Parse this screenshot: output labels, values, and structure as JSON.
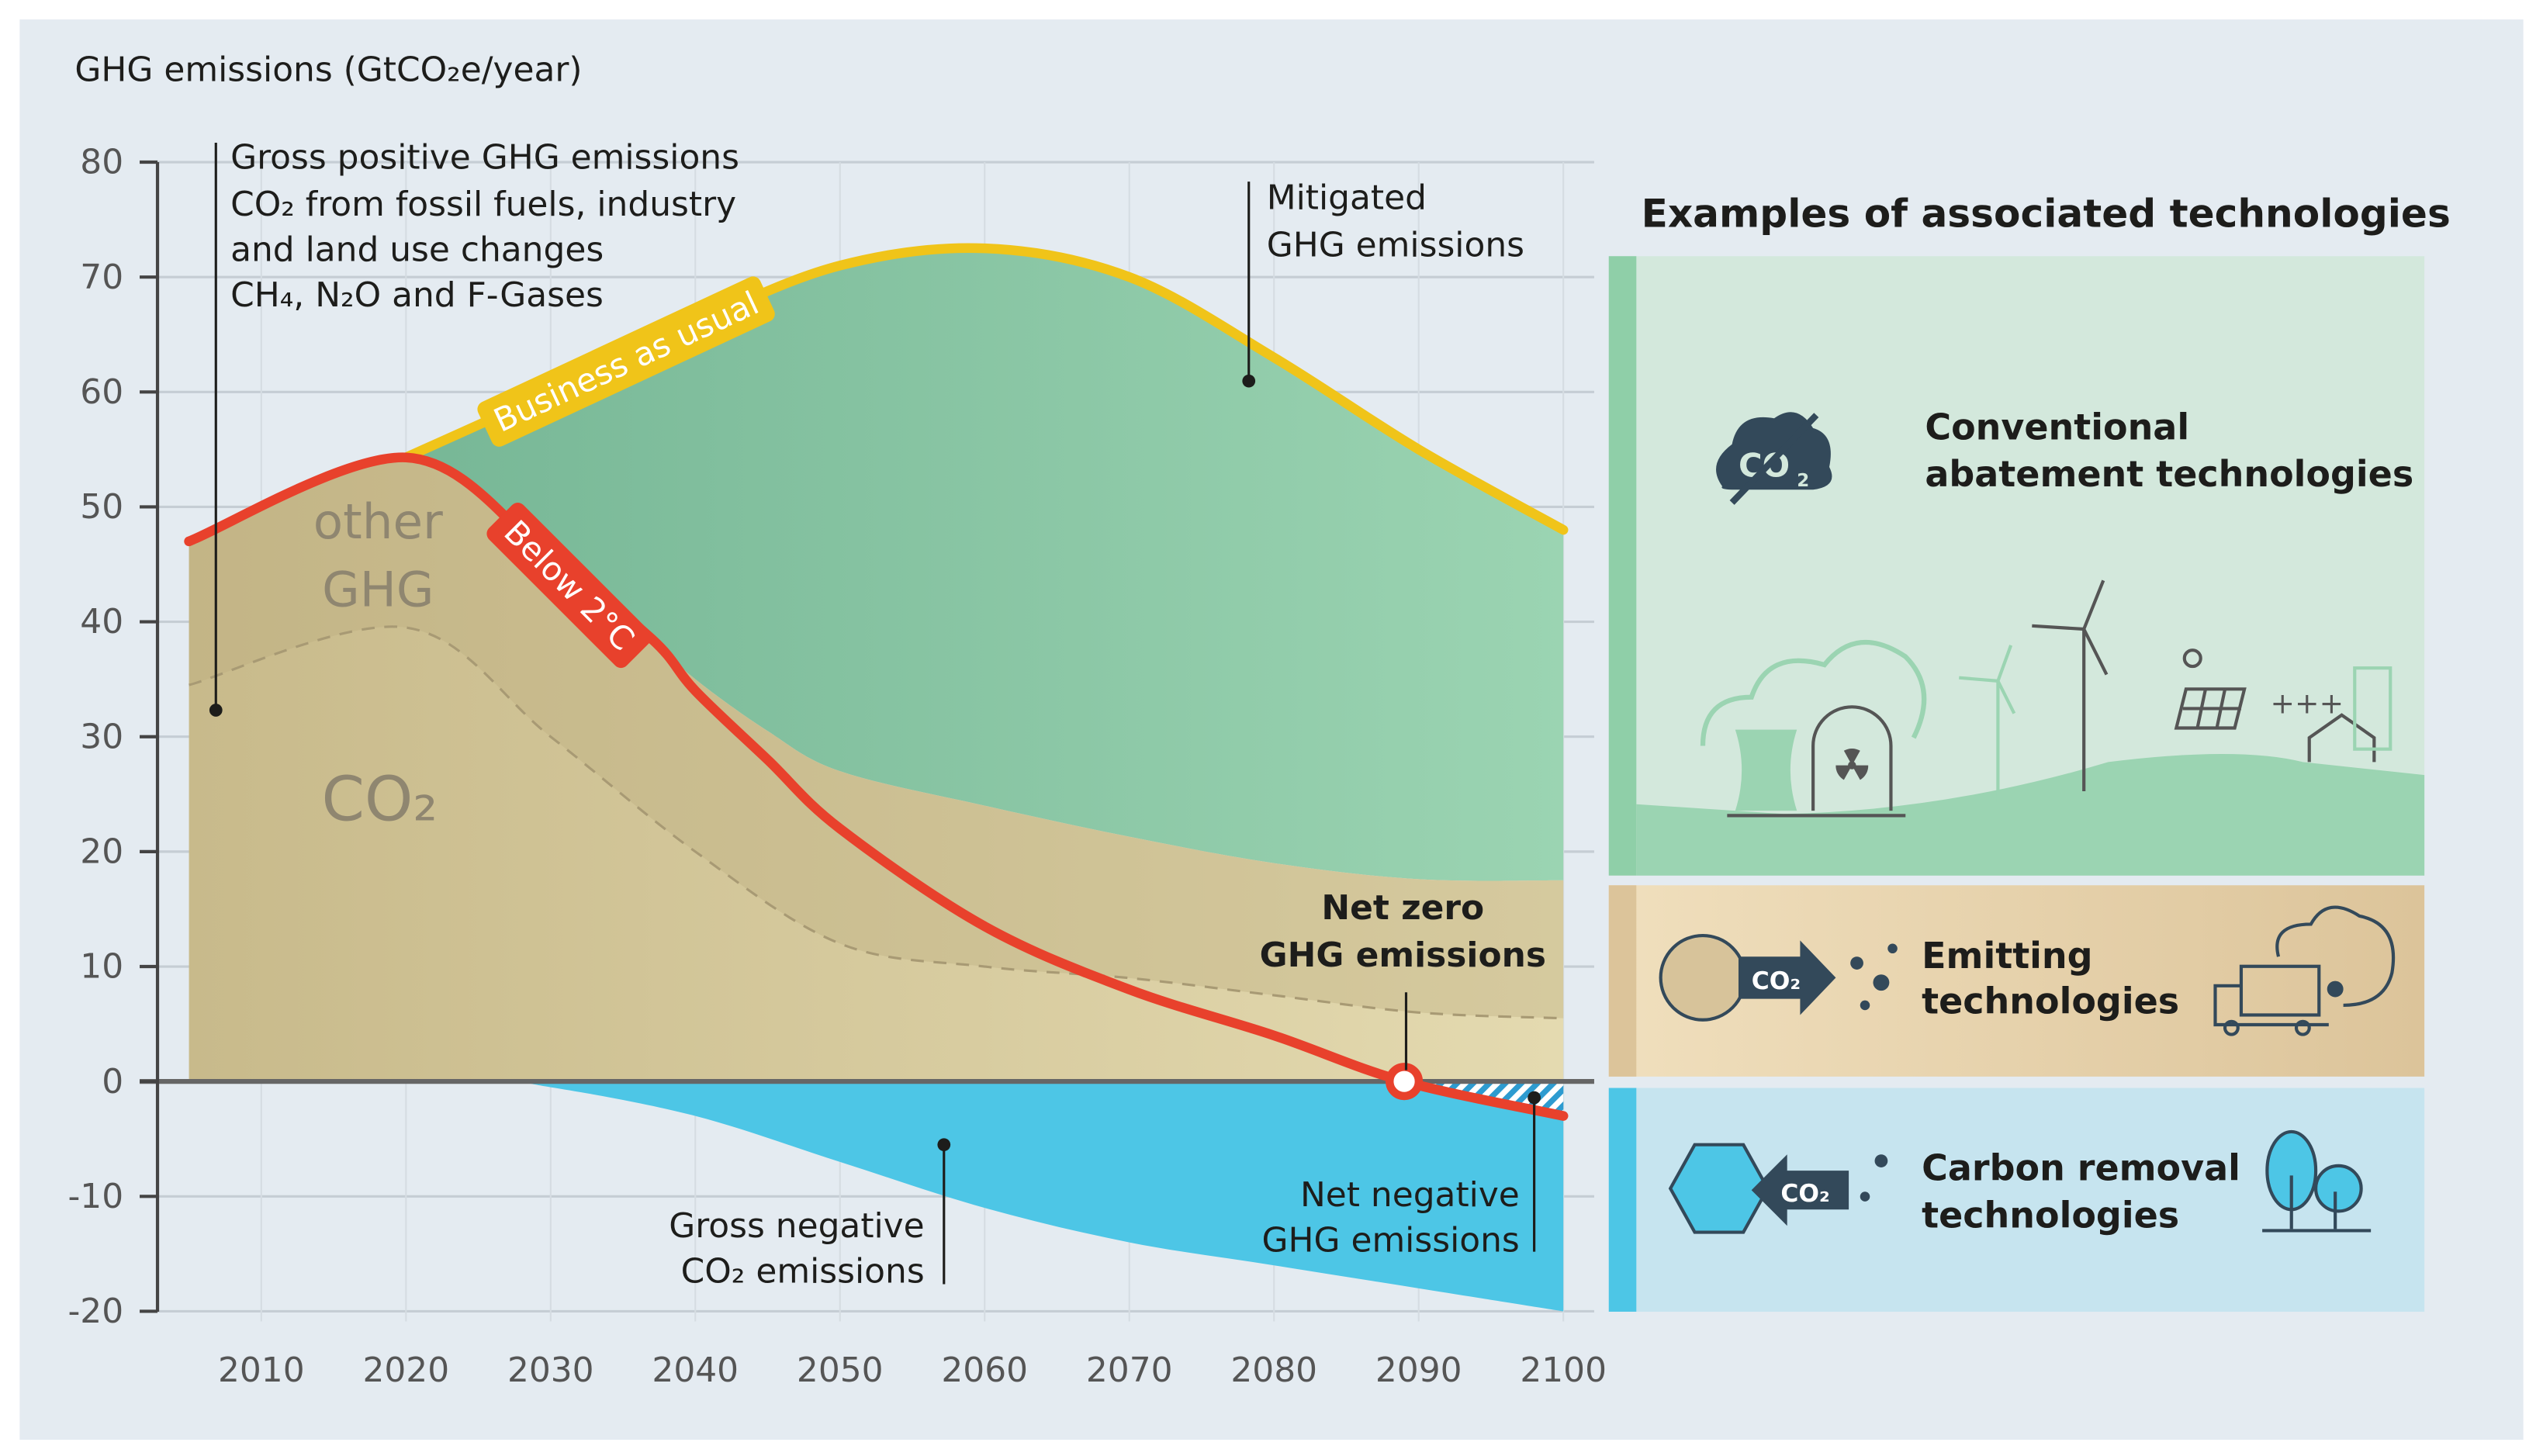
{
  "chart_data": {
    "type": "area",
    "ylabel": "GHG emissions (GtCO₂e/year)",
    "ylim": [
      -20,
      80
    ],
    "xlim": [
      2005,
      2100
    ],
    "yticks": [
      "80",
      "70",
      "60",
      "50",
      "40",
      "30",
      "20",
      "10",
      "0",
      "-10",
      "-20"
    ],
    "xticks": [
      "2010",
      "2020",
      "2030",
      "2040",
      "2050",
      "2060",
      "2070",
      "2080",
      "2090",
      "2100"
    ],
    "grid": true,
    "series": [
      {
        "name": "Business as usual",
        "color": "#f0c419",
        "x": [
          2005,
          2020,
          2030,
          2040,
          2050,
          2060,
          2070,
          2080,
          2090,
          2100
        ],
        "values": [
          47,
          54.3,
          60,
          66,
          71,
          72.5,
          70,
          63,
          55,
          48
        ]
      },
      {
        "name": "Below 2°C",
        "color": "#e8412c",
        "x": [
          2005,
          2020,
          2030,
          2037,
          2040,
          2045,
          2050,
          2060,
          2070,
          2080,
          2089,
          2100
        ],
        "values": [
          47,
          54.3,
          45.5,
          38.5,
          34,
          28,
          22,
          13.5,
          8,
          4,
          0,
          -3
        ]
      },
      {
        "name": "Gross positive GHG emissions",
        "x": [
          2005,
          2020,
          2030,
          2037,
          2040,
          2045,
          2050,
          2060,
          2070,
          2080,
          2090,
          2100
        ],
        "values": [
          47,
          54.3,
          45.5,
          38.5,
          35,
          30.5,
          27,
          24,
          21.3,
          19,
          17.6,
          17.5
        ]
      },
      {
        "name": "CO₂",
        "x": [
          2005,
          2020,
          2030,
          2040,
          2050,
          2060,
          2070,
          2080,
          2090,
          2100
        ],
        "values": [
          34.5,
          39.5,
          30,
          20,
          12,
          10,
          9,
          7.5,
          6,
          5.5
        ]
      },
      {
        "name": "Gross negative CO₂ emissions",
        "x": [
          2005,
          2025,
          2030,
          2040,
          2050,
          2060,
          2070,
          2080,
          2090,
          2100
        ],
        "values": [
          0,
          0,
          -0.5,
          -3,
          -7,
          -11,
          -14,
          -16,
          -18,
          -20
        ]
      }
    ],
    "colors": {
      "mitigated": "#8fcfa8",
      "gross_positive": "#d3c596",
      "other_ghg": "#c4b688",
      "negative": "#4dc6e6",
      "background": "#e4ebf1"
    },
    "area_labels": {
      "other_1": "other",
      "other_2": "GHG",
      "co2": "CO₂"
    },
    "annotations": {
      "gross_positive": [
        "Gross positive GHG emissions",
        "CO₂ from fossil fuels, industry",
        "and land use changes",
        "CH₄, N₂O and F-Gases"
      ],
      "mitigated": [
        "Mitigated",
        "GHG emissions"
      ],
      "net_zero": [
        "Net zero",
        "GHG emissions"
      ],
      "gross_negative": [
        "Gross negative",
        "CO₂ emissions"
      ],
      "net_negative": [
        "Net negative",
        "GHG emissions"
      ],
      "net_zero_year": 2089
    }
  },
  "tech_panel": {
    "title": "Examples of associated technologies",
    "items": [
      {
        "label_1": "Conventional",
        "label_2": "abatement technologies",
        "color": "#d3e8dc",
        "strip": "#8fcfa8",
        "icon": "crossed-co2-cloud-icon",
        "co2": "CO",
        "co2_sub": "2"
      },
      {
        "label_1": "Emitting",
        "label_2": "technologies",
        "color": "#e9d4aa",
        "strip": "#dcc49a",
        "icon": "co2-emission-arrow-icon",
        "co2": "CO₂"
      },
      {
        "label_1": "Carbon removal",
        "label_2": "technologies",
        "color": "#c6e4ef",
        "strip": "#4dc6e6",
        "icon": "co2-capture-arrow-icon",
        "co2": "CO₂"
      }
    ],
    "plus_signs": "+++"
  }
}
